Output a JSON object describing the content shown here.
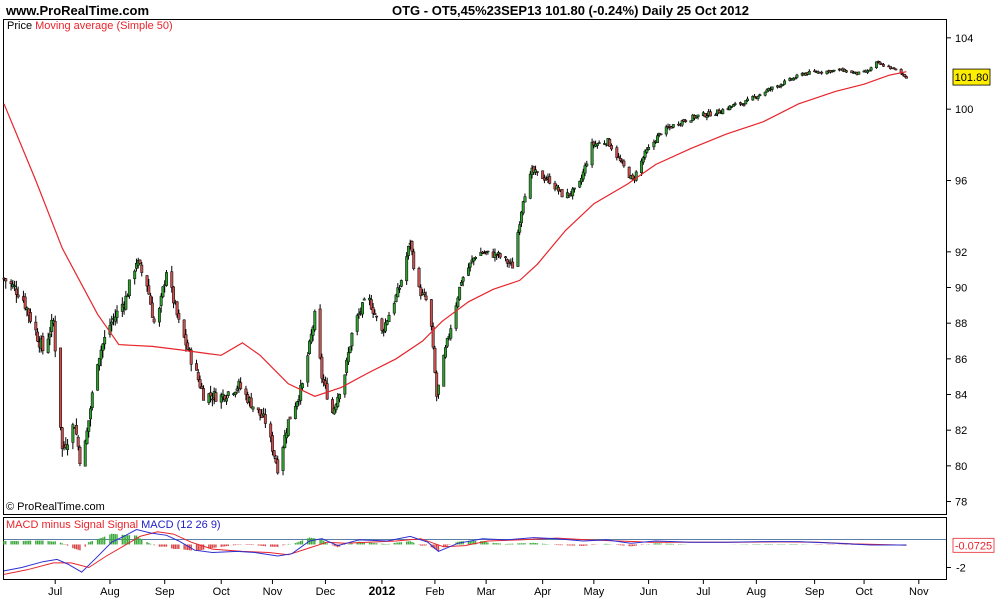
{
  "header": {
    "site": "www.ProRealTime.com",
    "title": "OTG - OT5,45%23SEP13    101.80 (-0.24%)    Daily  25 Oct 2012"
  },
  "price_pane": {
    "label_prefix": "Price",
    "label_ma": "Moving average (Simple 50)",
    "copyright": "© ProRealTime.com",
    "last_price_tag": "101.80"
  },
  "macd_pane": {
    "label_hist": "MACD minus Signal",
    "label_signal": "Signal",
    "label_macd": "MACD (12 26 9)",
    "last_value_tag": "-0.0725"
  },
  "colors": {
    "up_candle": "#2f9c2f",
    "down_candle": "#c94f4f",
    "moving_average": "#e8242b",
    "macd_line": "#2f2fd0",
    "signal_line": "#e8242b",
    "hist_positive": "#3aa93a",
    "hist_negative": "#d84444",
    "tag_background": "#ffee00",
    "grid_border": "#000000"
  },
  "chart_data": [
    {
      "type": "ohlc",
      "name": "price",
      "xlabel": "",
      "ylabel": "",
      "y_ticks": [
        78,
        80,
        82,
        84,
        86,
        88,
        90,
        92,
        96,
        100,
        104
      ],
      "y_axis_range": [
        77.3,
        105.0
      ],
      "x_tick_labels": [
        "Jul",
        "Aug",
        "Sep",
        "Oct",
        "Nov",
        "Dec",
        "2012",
        "Feb",
        "Mar",
        "Apr",
        "May",
        "Jun",
        "Jul",
        "Aug",
        "Sep",
        "Oct",
        "Nov"
      ],
      "x_date_range": [
        "2011-06-02",
        "2012-11-13"
      ],
      "x_ticks_dates": [
        "2011-07-01",
        "2011-08-01",
        "2011-09-01",
        "2011-10-03",
        "2011-11-01",
        "2011-12-01",
        "2012-01-02",
        "2012-02-01",
        "2012-03-01",
        "2012-04-02",
        "2012-05-01",
        "2012-06-01",
        "2012-07-02",
        "2012-08-01",
        "2012-09-03",
        "2012-10-01",
        "2012-11-01"
      ],
      "close_anchors": [
        [
          "2011-06-02",
          90.5
        ],
        [
          "2011-06-12",
          89.6
        ],
        [
          "2011-06-24",
          86.5
        ],
        [
          "2011-06-30",
          88.1
        ],
        [
          "2011-07-05",
          80.9
        ],
        [
          "2011-07-12",
          82.4
        ],
        [
          "2011-07-16",
          79.8
        ],
        [
          "2011-07-25",
          86.0
        ],
        [
          "2011-08-01",
          87.9
        ],
        [
          "2011-08-10",
          89.4
        ],
        [
          "2011-08-16",
          91.5
        ],
        [
          "2011-08-22",
          90.2
        ],
        [
          "2011-08-27",
          87.5
        ],
        [
          "2011-09-02",
          91.0
        ],
        [
          "2011-09-09",
          88.0
        ],
        [
          "2011-09-16",
          86.0
        ],
        [
          "2011-09-23",
          84.0
        ],
        [
          "2011-10-03",
          83.9
        ],
        [
          "2011-10-13",
          84.5
        ],
        [
          "2011-10-20",
          83.5
        ],
        [
          "2011-10-28",
          82.5
        ],
        [
          "2011-11-04",
          79.9
        ],
        [
          "2011-11-10",
          82.5
        ],
        [
          "2011-11-18",
          84.5
        ],
        [
          "2011-11-25",
          88.4
        ],
        [
          "2011-11-29",
          85.0
        ],
        [
          "2011-12-05",
          83.0
        ],
        [
          "2011-12-12",
          85.2
        ],
        [
          "2011-12-17",
          87.9
        ],
        [
          "2011-12-25",
          89.5
        ],
        [
          "2012-01-02",
          87.5
        ],
        [
          "2012-01-12",
          90.0
        ],
        [
          "2012-01-18",
          92.6
        ],
        [
          "2012-01-22",
          90.0
        ],
        [
          "2012-01-29",
          89.0
        ],
        [
          "2012-02-02",
          83.9
        ],
        [
          "2012-02-07",
          86.5
        ],
        [
          "2012-02-16",
          90.4
        ],
        [
          "2012-02-25",
          92.0
        ],
        [
          "2012-03-08",
          91.8
        ],
        [
          "2012-03-16",
          91.2
        ],
        [
          "2012-03-22",
          95.0
        ],
        [
          "2012-03-27",
          96.5
        ],
        [
          "2012-04-06",
          96.0
        ],
        [
          "2012-04-14",
          95.1
        ],
        [
          "2012-04-22",
          95.5
        ],
        [
          "2012-04-30",
          98.0
        ],
        [
          "2012-05-09",
          98.2
        ],
        [
          "2012-05-17",
          96.9
        ],
        [
          "2012-05-23",
          96.0
        ],
        [
          "2012-05-30",
          97.5
        ],
        [
          "2012-06-08",
          98.7
        ],
        [
          "2012-06-19",
          99.3
        ],
        [
          "2012-06-28",
          99.6
        ],
        [
          "2012-07-09",
          99.8
        ],
        [
          "2012-07-19",
          100.2
        ],
        [
          "2012-07-26",
          100.4
        ],
        [
          "2012-08-06",
          101.0
        ],
        [
          "2012-08-17",
          101.5
        ],
        [
          "2012-08-28",
          102.0
        ],
        [
          "2012-09-06",
          102.1
        ],
        [
          "2012-09-18",
          102.2
        ],
        [
          "2012-09-27",
          102.0
        ],
        [
          "2012-10-03",
          102.1
        ],
        [
          "2012-10-08",
          102.6
        ],
        [
          "2012-10-19",
          102.2
        ],
        [
          "2012-10-25",
          101.8
        ]
      ]
    },
    {
      "type": "line",
      "name": "Moving average (Simple 50)",
      "points": [
        [
          "2011-06-02",
          100.3
        ],
        [
          "2011-06-20",
          96.0
        ],
        [
          "2011-07-05",
          92.2
        ],
        [
          "2011-07-25",
          88.5
        ],
        [
          "2011-08-06",
          86.8
        ],
        [
          "2011-08-25",
          86.7
        ],
        [
          "2011-09-10",
          86.5
        ],
        [
          "2011-09-25",
          86.3
        ],
        [
          "2011-10-03",
          86.2
        ],
        [
          "2011-10-15",
          86.9
        ],
        [
          "2011-10-25",
          86.2
        ],
        [
          "2011-11-10",
          84.6
        ],
        [
          "2011-11-25",
          83.9
        ],
        [
          "2011-12-10",
          84.4
        ],
        [
          "2011-12-25",
          85.2
        ],
        [
          "2012-01-10",
          86.0
        ],
        [
          "2012-01-25",
          87.0
        ],
        [
          "2012-02-05",
          88.1
        ],
        [
          "2012-02-20",
          89.2
        ],
        [
          "2012-03-05",
          89.9
        ],
        [
          "2012-03-20",
          90.4
        ],
        [
          "2012-03-30",
          91.3
        ],
        [
          "2012-04-15",
          93.2
        ],
        [
          "2012-05-01",
          94.7
        ],
        [
          "2012-05-20",
          95.8
        ],
        [
          "2012-06-05",
          96.9
        ],
        [
          "2012-06-25",
          97.8
        ],
        [
          "2012-07-15",
          98.6
        ],
        [
          "2012-08-05",
          99.3
        ],
        [
          "2012-08-25",
          100.3
        ],
        [
          "2012-09-15",
          101.0
        ],
        [
          "2012-10-01",
          101.4
        ],
        [
          "2012-10-15",
          101.9
        ],
        [
          "2012-10-25",
          102.1
        ]
      ]
    },
    {
      "type": "line",
      "name": "MACD (12 26 9)",
      "y_ticks": [
        -2
      ],
      "y_axis_range": [
        -3.0,
        2.3
      ],
      "macd_points": [
        [
          "2011-06-02",
          -2.3
        ],
        [
          "2011-06-12",
          -2.0
        ],
        [
          "2011-06-24",
          -1.5
        ],
        [
          "2011-07-02",
          -1.3
        ],
        [
          "2011-07-08",
          -1.7
        ],
        [
          "2011-07-16",
          -2.4
        ],
        [
          "2011-07-24",
          -1.2
        ],
        [
          "2011-08-02",
          0.2
        ],
        [
          "2011-08-10",
          0.8
        ],
        [
          "2011-08-16",
          1.3
        ],
        [
          "2011-08-24",
          1.0
        ],
        [
          "2011-09-02",
          0.8
        ],
        [
          "2011-09-09",
          0.3
        ],
        [
          "2011-09-18",
          -0.5
        ],
        [
          "2011-09-28",
          -0.7
        ],
        [
          "2011-10-12",
          -0.6
        ],
        [
          "2011-10-22",
          -0.7
        ],
        [
          "2011-11-04",
          -1.0
        ],
        [
          "2011-11-12",
          -0.8
        ],
        [
          "2011-11-22",
          0.3
        ],
        [
          "2011-11-29",
          0.5
        ],
        [
          "2011-12-08",
          -0.1
        ],
        [
          "2011-12-20",
          0.4
        ],
        [
          "2012-01-05",
          0.3
        ],
        [
          "2012-01-18",
          0.7
        ],
        [
          "2012-01-28",
          0.2
        ],
        [
          "2012-02-03",
          -0.6
        ],
        [
          "2012-02-14",
          0.1
        ],
        [
          "2012-02-28",
          0.5
        ],
        [
          "2012-03-12",
          0.4
        ],
        [
          "2012-03-28",
          0.6
        ],
        [
          "2012-04-10",
          0.5
        ],
        [
          "2012-04-25",
          0.3
        ],
        [
          "2012-05-08",
          0.4
        ],
        [
          "2012-05-22",
          0.1
        ],
        [
          "2012-06-05",
          0.3
        ],
        [
          "2012-06-25",
          0.2
        ],
        [
          "2012-07-15",
          0.2
        ],
        [
          "2012-08-05",
          0.25
        ],
        [
          "2012-08-25",
          0.25
        ],
        [
          "2012-09-15",
          0.1
        ],
        [
          "2012-10-05",
          -0.05
        ],
        [
          "2012-10-25",
          -0.05
        ]
      ],
      "signal_points": [
        [
          "2011-06-02",
          -2.6
        ],
        [
          "2011-06-15",
          -2.2
        ],
        [
          "2011-06-30",
          -1.6
        ],
        [
          "2011-07-10",
          -1.6
        ],
        [
          "2011-07-20",
          -2.0
        ],
        [
          "2011-07-30",
          -1.0
        ],
        [
          "2011-08-08",
          -0.2
        ],
        [
          "2011-08-18",
          0.7
        ],
        [
          "2011-08-28",
          1.1
        ],
        [
          "2011-09-06",
          0.9
        ],
        [
          "2011-09-16",
          0.2
        ],
        [
          "2011-09-28",
          -0.4
        ],
        [
          "2011-10-15",
          -0.6
        ],
        [
          "2011-10-30",
          -0.7
        ],
        [
          "2011-11-10",
          -0.9
        ],
        [
          "2011-11-22",
          -0.3
        ],
        [
          "2011-12-02",
          0.2
        ],
        [
          "2011-12-12",
          0.1
        ],
        [
          "2011-12-25",
          0.2
        ],
        [
          "2012-01-10",
          0.3
        ],
        [
          "2012-01-24",
          0.5
        ],
        [
          "2012-02-06",
          -0.2
        ],
        [
          "2012-02-18",
          -0.1
        ],
        [
          "2012-03-02",
          0.3
        ],
        [
          "2012-03-20",
          0.4
        ],
        [
          "2012-04-10",
          0.55
        ],
        [
          "2012-04-28",
          0.4
        ],
        [
          "2012-05-15",
          0.3
        ],
        [
          "2012-06-02",
          0.2
        ],
        [
          "2012-06-25",
          0.2
        ],
        [
          "2012-07-20",
          0.2
        ],
        [
          "2012-08-15",
          0.22
        ],
        [
          "2012-09-05",
          0.2
        ],
        [
          "2012-09-25",
          0.05
        ],
        [
          "2012-10-15",
          -0.03
        ],
        [
          "2012-10-25",
          -0.06
        ]
      ]
    }
  ]
}
